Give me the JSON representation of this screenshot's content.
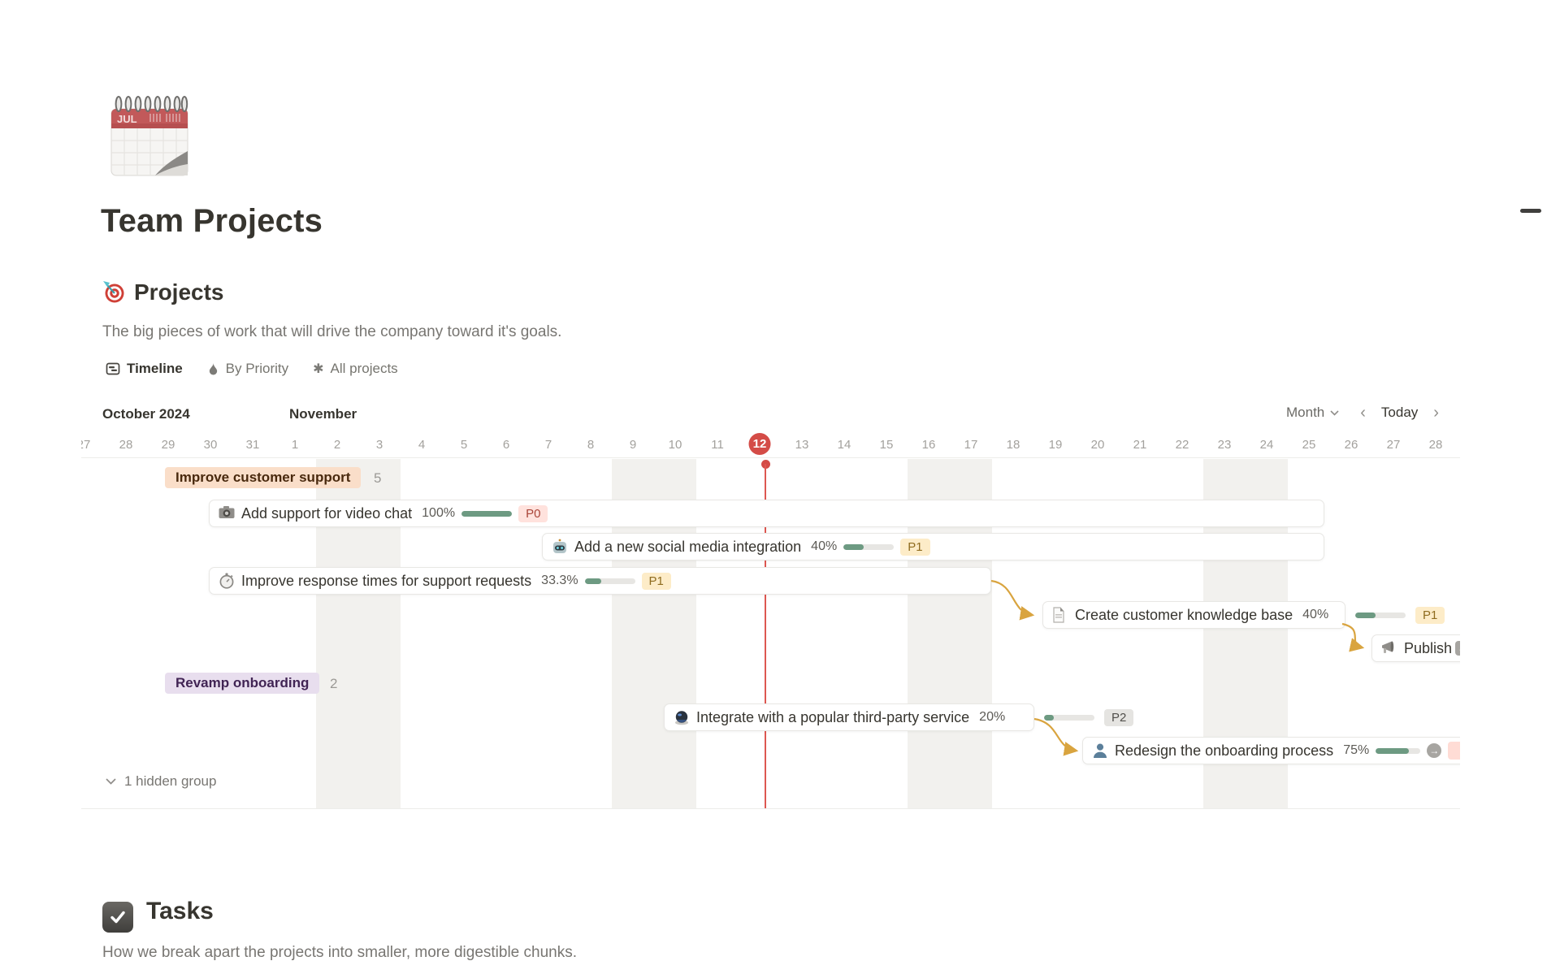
{
  "page": {
    "title": "Team Projects",
    "icon": "spiral-calendar-icon",
    "icon_month": "JUL"
  },
  "projects": {
    "icon": "target-icon",
    "title": "Projects",
    "description": "The big pieces of work that will drive the company toward it's goals.",
    "tabs": [
      {
        "label": "Timeline",
        "icon": "timeline-view-icon",
        "active": true
      },
      {
        "label": "By Priority",
        "icon": "flame-icon",
        "active": false
      },
      {
        "label": "All projects",
        "icon": "asterisk-icon",
        "active": false
      }
    ],
    "toolbar": {
      "scale": "Month",
      "prev": "‹",
      "today": "Today",
      "next": "›"
    }
  },
  "timeline": {
    "months": [
      {
        "label": "October 2024"
      },
      {
        "label": "November"
      }
    ],
    "days": [
      {
        "label": "27"
      },
      {
        "label": "28"
      },
      {
        "label": "29"
      },
      {
        "label": "30"
      },
      {
        "label": "31"
      },
      {
        "label": "1"
      },
      {
        "label": "2",
        "weekend": true
      },
      {
        "label": "3",
        "weekend": true
      },
      {
        "label": "4"
      },
      {
        "label": "5"
      },
      {
        "label": "6"
      },
      {
        "label": "7"
      },
      {
        "label": "8"
      },
      {
        "label": "9",
        "weekend": true
      },
      {
        "label": "10",
        "weekend": true
      },
      {
        "label": "11"
      },
      {
        "label": "12",
        "today": true
      },
      {
        "label": "13"
      },
      {
        "label": "14"
      },
      {
        "label": "15"
      },
      {
        "label": "16",
        "weekend": true
      },
      {
        "label": "17",
        "weekend": true
      },
      {
        "label": "18"
      },
      {
        "label": "19"
      },
      {
        "label": "20"
      },
      {
        "label": "21"
      },
      {
        "label": "22"
      },
      {
        "label": "23",
        "weekend": true
      },
      {
        "label": "24",
        "weekend": true
      },
      {
        "label": "25"
      },
      {
        "label": "26"
      },
      {
        "label": "27"
      },
      {
        "label": "28"
      }
    ],
    "hidden_group": "1 hidden group",
    "groups": [
      {
        "name": "Improve customer support",
        "count": "5",
        "bars": [
          {
            "icon": "camera-icon",
            "label": "Add support for video chat",
            "percent": "100%",
            "value": 100,
            "priority": "P0"
          },
          {
            "icon": "robot-icon",
            "label": "Add a new social media integration",
            "percent": "40%",
            "value": 40,
            "priority": "P1"
          },
          {
            "icon": "stopwatch-icon",
            "label": "Improve response times for support requests",
            "percent": "33.3%",
            "value": 33.3,
            "priority": "P1"
          },
          {
            "icon": "document-icon",
            "label": "Create customer knowledge base",
            "percent": "40%",
            "value": 40,
            "priority": "P1"
          },
          {
            "icon": "megaphone-icon",
            "label": "Publish"
          }
        ]
      },
      {
        "name": "Revamp onboarding",
        "count": "2",
        "bars": [
          {
            "icon": "trackball-icon",
            "label": "Integrate with a popular third-party service",
            "percent": "20%",
            "value": 20,
            "priority": "P2"
          },
          {
            "icon": "person-icon",
            "label": "Redesign the onboarding process",
            "percent": "75%",
            "value": 75
          }
        ]
      }
    ]
  },
  "tasks": {
    "icon": "checkbox-icon",
    "title": "Tasks",
    "description": "How we break apart the projects into smaller, more digestible chunks."
  },
  "colors": {
    "today_red": "#d44c47",
    "progress_green": "#6d9a82",
    "connector_yellow": "#d9a43f",
    "p0_bg": "#ffe2dd",
    "p0_text": "#a94438",
    "p1_bg": "#fdecc8",
    "p1_text": "#8f6c1f",
    "p2_bg": "#e5e4e1",
    "p2_text": "#504f4b",
    "group1_bg": "#fadec9",
    "group2_bg": "#e8deee"
  }
}
